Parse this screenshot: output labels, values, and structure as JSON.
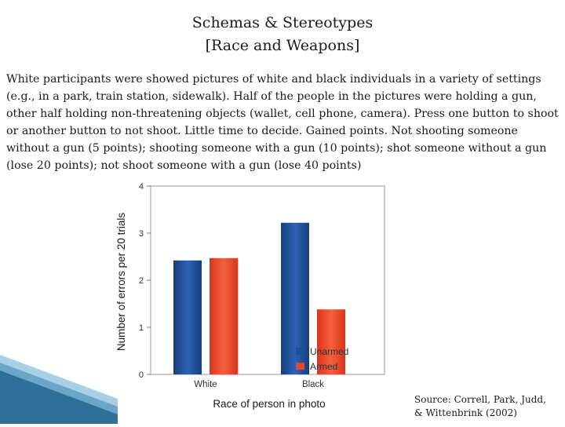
{
  "slide": {
    "title_line1": "Schemas & Stereotypes",
    "title_line2": "[Race and Weapons]",
    "body": "White participants were showed pictures of white and black individuals in a variety of settings (e.g., in a park, train station, sidewalk). Half of the people in the pictures were holding a gun, other half holding non-threatening objects (wallet, cell phone, camera). Press one button to shoot or another button to not shoot. Little time to decide. Gained points. Not shooting someone without a gun (5 points); shooting someone with a gun (10 points); shot someone without a gun (lose 20 points); not shoot someone with a gun (lose 40 points)",
    "source_line1": "Source: Correll, Park, Judd,",
    "source_line2": "& Wittenbrink (2002)"
  },
  "chart_data": {
    "type": "bar",
    "categories": [
      "White",
      "Black"
    ],
    "series": [
      {
        "name": "Unarmed",
        "values": [
          2.42,
          3.22
        ],
        "color": "#1f4e9c"
      },
      {
        "name": "Armed",
        "values": [
          2.47,
          1.38
        ],
        "color": "#e8472a"
      }
    ],
    "xlabel": "Race of person in photo",
    "ylabel": "Number of errors per 20 trials",
    "ylim": [
      0,
      4
    ],
    "yticks": [
      "0",
      "1",
      "2",
      "3",
      "4"
    ],
    "legend_position": "bottom-right",
    "grid": false
  }
}
